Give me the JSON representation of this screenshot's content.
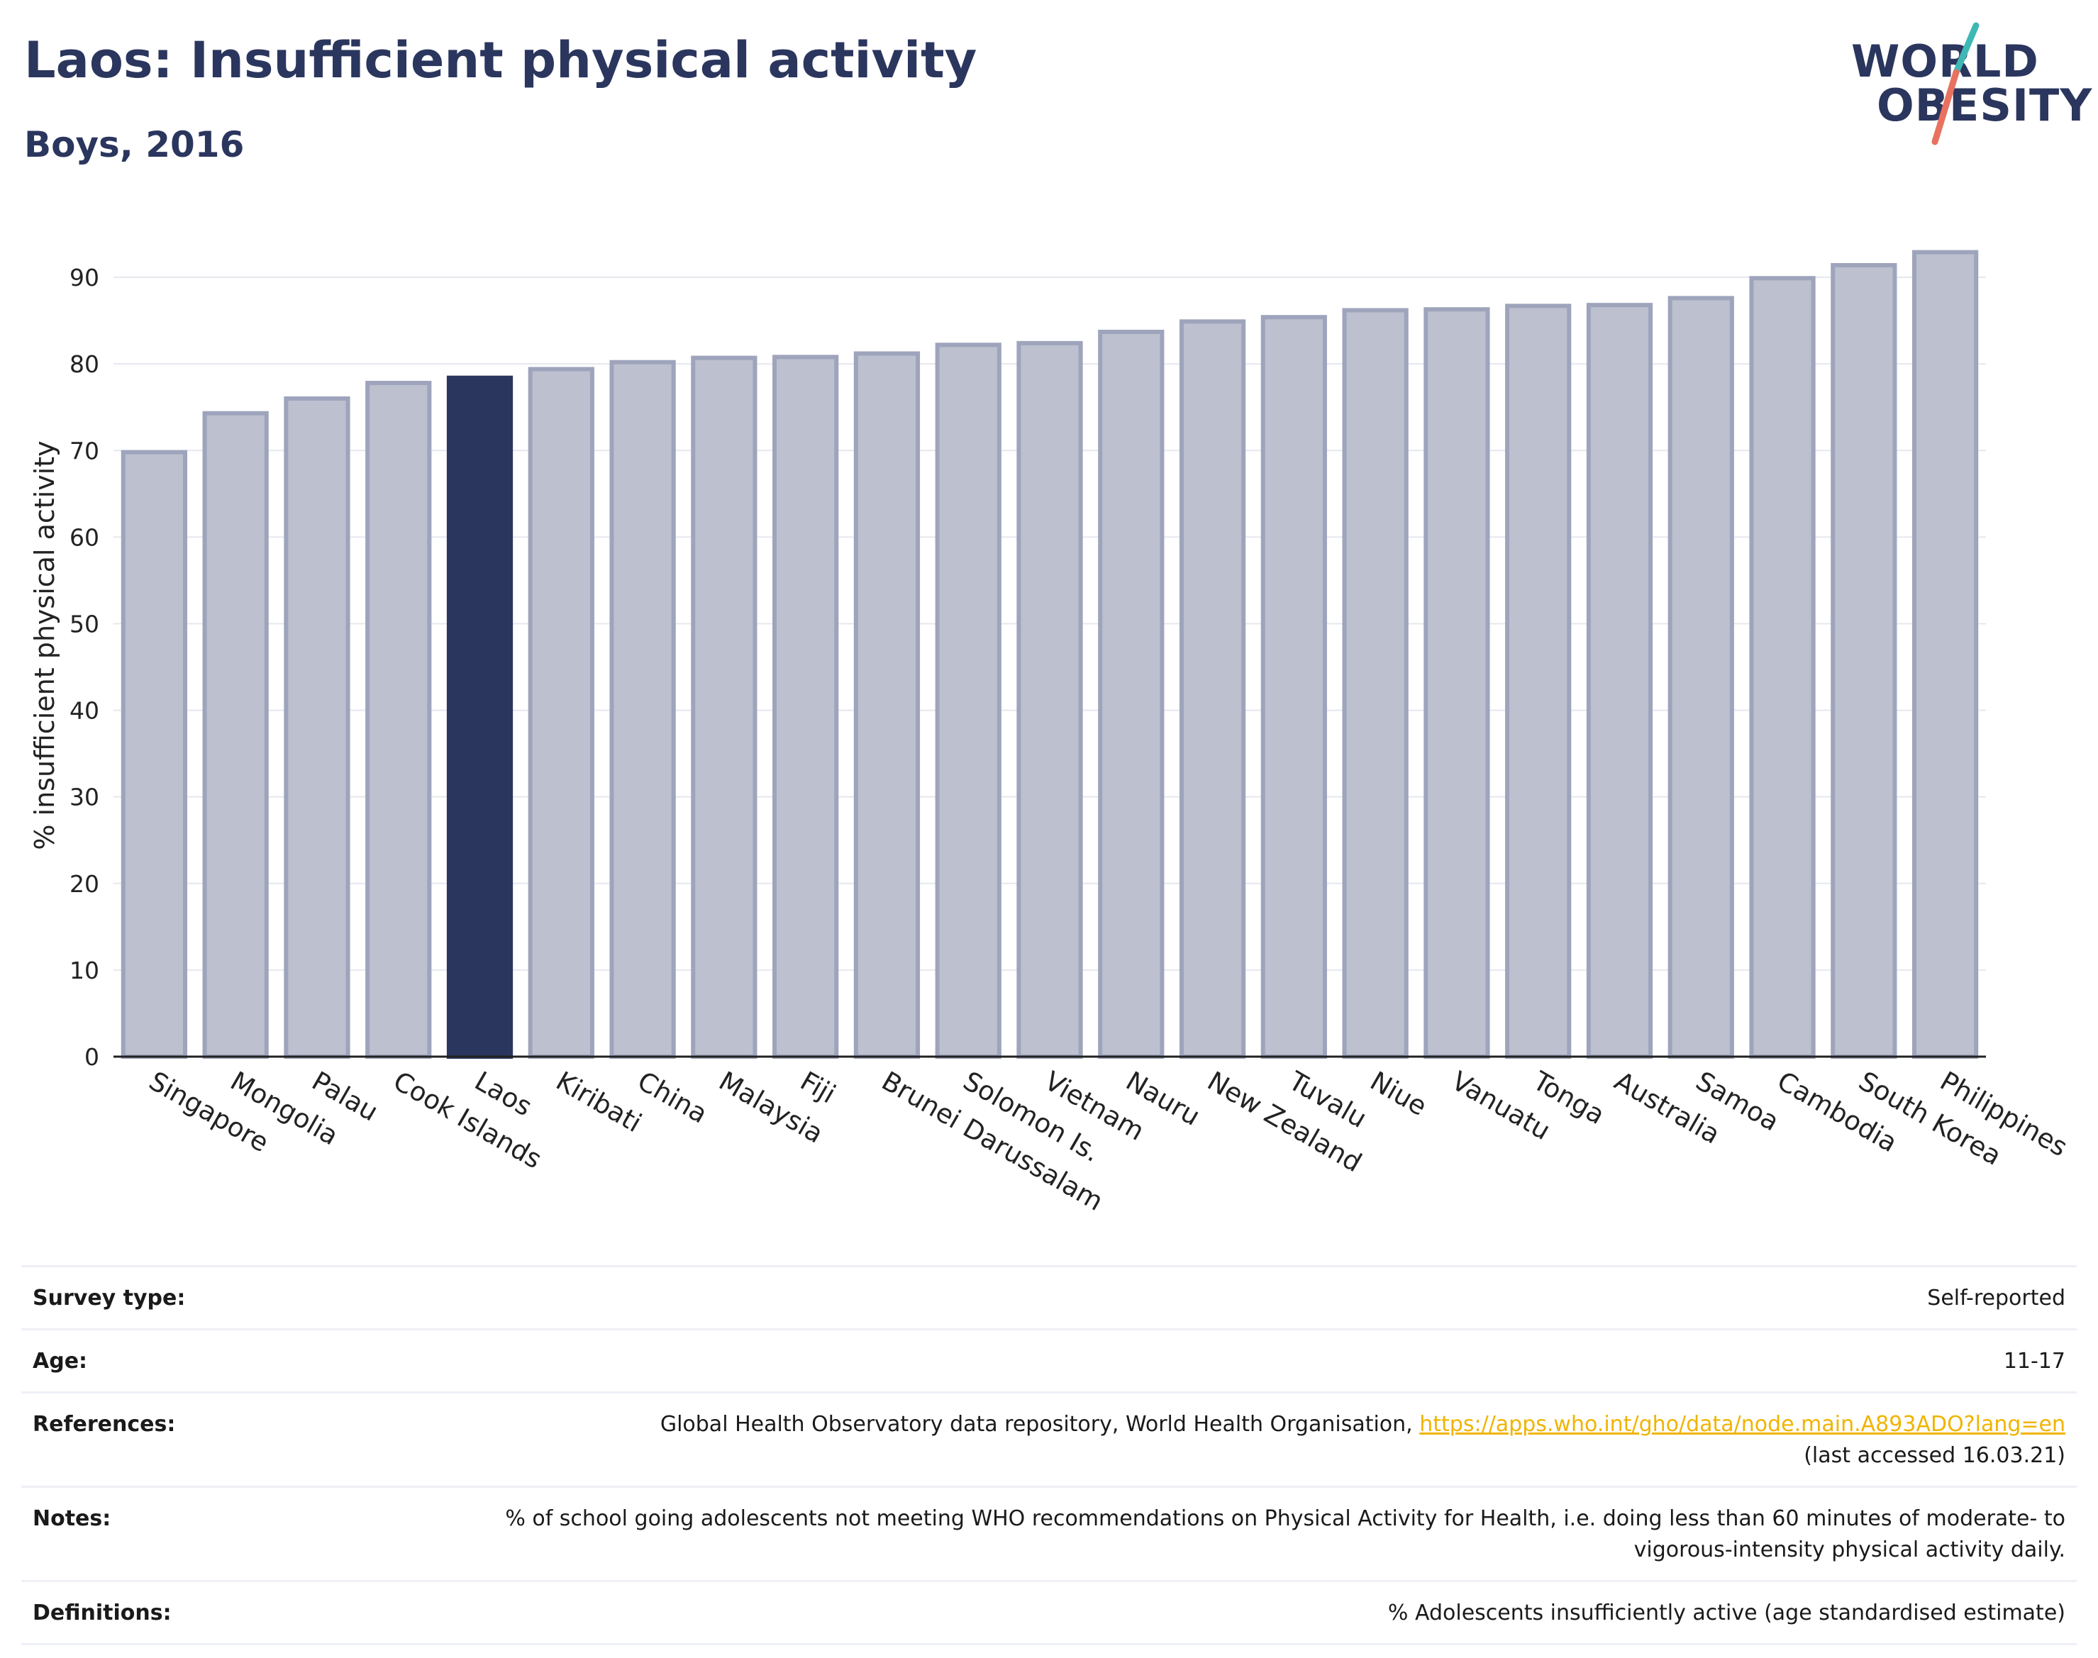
{
  "header": {
    "title": "Laos: Insufficient physical activity",
    "subtitle": "Boys, 2016"
  },
  "logo": {
    "line1": "WORLD",
    "line2": "OBESITY",
    "accent_colors": [
      "#3fb8b5",
      "#e8725f"
    ]
  },
  "chart_data": {
    "type": "bar",
    "categories": [
      "Singapore",
      "Mongolia",
      "Palau",
      "Cook Islands",
      "Laos",
      "Kiribati",
      "China",
      "Malaysia",
      "Fiji",
      "Brunei Darussalam",
      "Solomon Is.",
      "Vietnam",
      "Nauru",
      "New Zealand",
      "Tuvalu",
      "Niue",
      "Vanuatu",
      "Tonga",
      "Australia",
      "Samoa",
      "Cambodia",
      "South Korea",
      "Philippines"
    ],
    "values": [
      69.8,
      74.3,
      76.0,
      77.8,
      78.4,
      79.4,
      80.2,
      80.7,
      80.8,
      81.2,
      82.2,
      82.4,
      83.7,
      84.9,
      85.4,
      86.2,
      86.3,
      86.7,
      86.8,
      87.6,
      89.9,
      91.4,
      92.9
    ],
    "highlight": "Laos",
    "ylabel": "% insufficient physical activity",
    "yticks": [
      0,
      10,
      20,
      30,
      40,
      50,
      60,
      70,
      80,
      90
    ],
    "ylim": [
      0,
      95
    ],
    "grid": true,
    "colors": {
      "bar": "#bcc0cf",
      "bar_edge": "#9ea4bb",
      "highlight": "#2b365e"
    }
  },
  "info": [
    {
      "label": "Survey type:",
      "value": "Self-reported"
    },
    {
      "label": "Age:",
      "value": "11-17"
    },
    {
      "label": "References:",
      "value": "Global Health Observatory data repository, World Health Organisation,",
      "link": "https://apps.who.int/gho/data/node.main.A893ADO?lang=en",
      "value_after": "(last accessed 16.03.21)"
    },
    {
      "label": "Notes:",
      "value": "% of school going adolescents not meeting WHO recommendations on Physical Activity for Health, i.e. doing less than 60 minutes of moderate- to vigorous-intensity physical activity daily."
    },
    {
      "label": "Definitions:",
      "value": "% Adolescents insufficiently active (age standardised estimate)"
    }
  ]
}
